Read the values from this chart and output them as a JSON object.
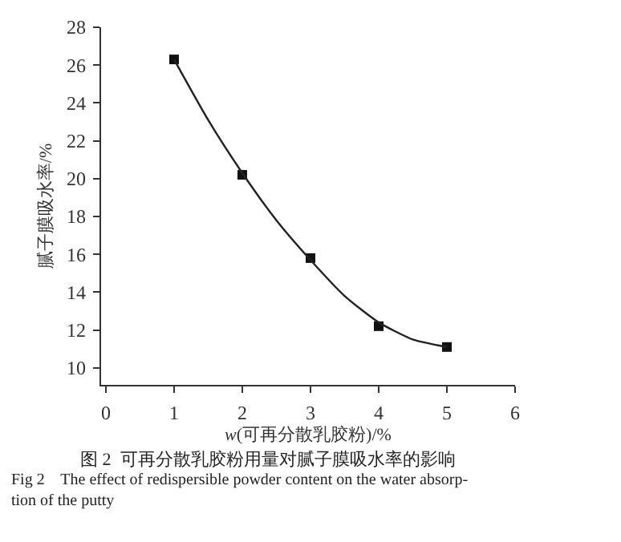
{
  "chart_data": {
    "type": "scatter",
    "xlabel": "w(可再分散乳胶粉)/%",
    "ylabel": "腻子膜吸水率/%",
    "annotations": [
      "图 2  可再分散乳胶粉用量对腻子膜吸水率的影响",
      "Fig 2    The effect of redispersible powder content on the water absorp-\ntion of the putty"
    ],
    "series": [
      {
        "color": "#111111",
        "marker": "square",
        "x": [
          1,
          2,
          3,
          4,
          5
        ],
        "values": [
          26.3,
          20.2,
          15.8,
          12.2,
          11.1
        ]
      },
      {
        "type": "line",
        "color": "#222222",
        "marker": "none",
        "line_style": "solid",
        "x": [
          1,
          1.5,
          2,
          2.5,
          3,
          3.5,
          4,
          4.5,
          5
        ],
        "values": [
          26.3,
          23.1,
          20.3,
          17.8,
          15.7,
          13.8,
          12.4,
          11.5,
          11.1
        ]
      }
    ],
    "xlim": [
      -0.07,
      6
    ],
    "xticks": [
      0,
      1,
      2,
      3,
      4,
      5,
      6
    ],
    "ylim": [
      9.1,
      28
    ],
    "yticks": [
      10,
      12,
      14,
      16,
      18,
      20,
      22,
      24,
      26,
      28
    ],
    "grid": false
  }
}
